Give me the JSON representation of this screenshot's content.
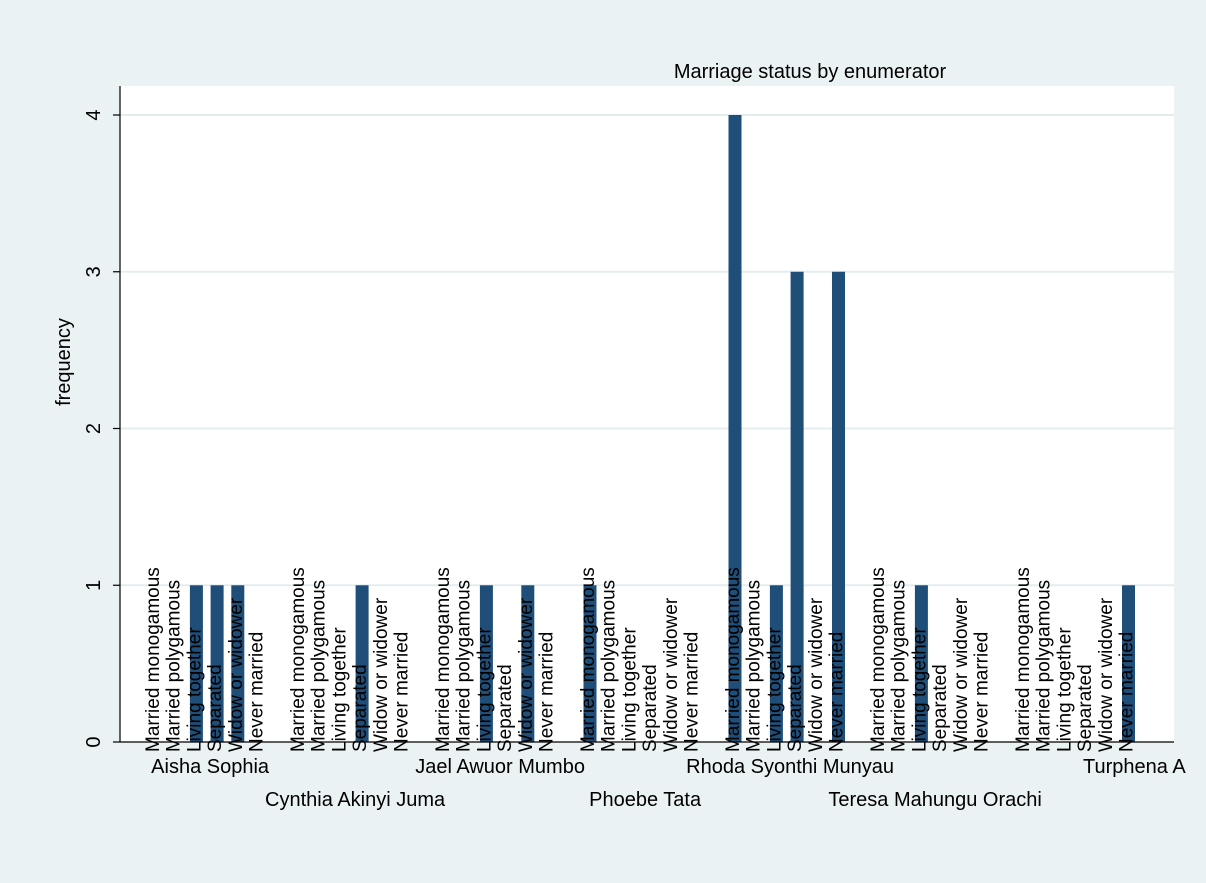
{
  "chart_data": {
    "type": "bar",
    "title": "Marriage status by enumerator",
    "ylabel": "frequency",
    "xlabel": "",
    "ylim": [
      0,
      4
    ],
    "yticks": [
      0,
      1,
      2,
      3,
      4
    ],
    "grid": true,
    "legend": "none",
    "bar_color": "#1f4e79",
    "status_categories": [
      "Married monogamous",
      "Married polygamous",
      "Living together",
      "Separated",
      "Widow or widower",
      "Never married"
    ],
    "groups": [
      {
        "name": "Aisha Sophia",
        "values": [
          0,
          0,
          1,
          1,
          1,
          0
        ]
      },
      {
        "name": "Cynthia Akinyi Juma",
        "values": [
          0,
          0,
          0,
          1,
          0,
          0
        ]
      },
      {
        "name": "Jael Awuor Mumbo",
        "values": [
          0,
          0,
          1,
          0,
          1,
          0
        ]
      },
      {
        "name": "Phoebe Tata",
        "values": [
          1,
          0,
          0,
          0,
          0,
          0
        ]
      },
      {
        "name": "Rhoda Syonthi Munyau",
        "values": [
          4,
          0,
          1,
          3,
          0,
          3
        ]
      },
      {
        "name": "Teresa Mahungu Orachi",
        "values": [
          0,
          0,
          1,
          0,
          0,
          0
        ]
      },
      {
        "name": "Turphena A",
        "values": [
          0,
          0,
          0,
          0,
          0,
          1
        ]
      }
    ]
  }
}
